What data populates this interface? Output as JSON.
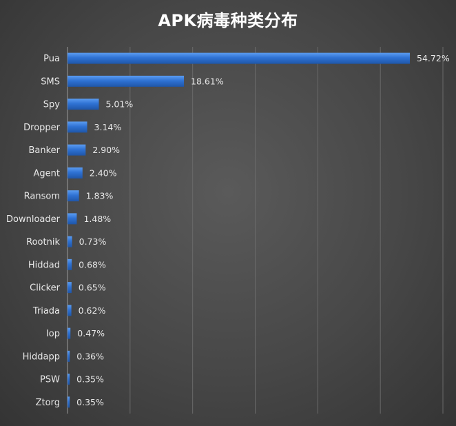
{
  "chart_data": {
    "type": "bar",
    "orientation": "horizontal",
    "title": "APK病毒种类分布",
    "categories": [
      "Pua",
      "SMS",
      "Spy",
      "Dropper",
      "Banker",
      "Agent",
      "Ransom",
      "Downloader",
      "Rootnik",
      "Hiddad",
      "Clicker",
      "Triada",
      "Iop",
      "Hiddapp",
      "PSW",
      "Ztorg"
    ],
    "values": [
      54.72,
      18.61,
      5.01,
      3.14,
      2.9,
      2.4,
      1.83,
      1.48,
      0.73,
      0.68,
      0.65,
      0.62,
      0.47,
      0.36,
      0.35,
      0.35
    ],
    "value_labels": [
      "54.72%",
      "18.61%",
      "5.01%",
      "3.14%",
      "2.90%",
      "2.40%",
      "1.83%",
      "1.48%",
      "0.73%",
      "0.68%",
      "0.65%",
      "0.62%",
      "0.47%",
      "0.36%",
      "0.35%",
      "0.35%"
    ],
    "xlim": [
      0,
      60
    ],
    "grid": true,
    "legend": "none",
    "colors": {
      "bar": "#2e6fd0",
      "bar_highlight": "#4d8fe8",
      "grid": "#6a6a6a",
      "text": "#e8e8e8",
      "background": "#454545"
    }
  }
}
